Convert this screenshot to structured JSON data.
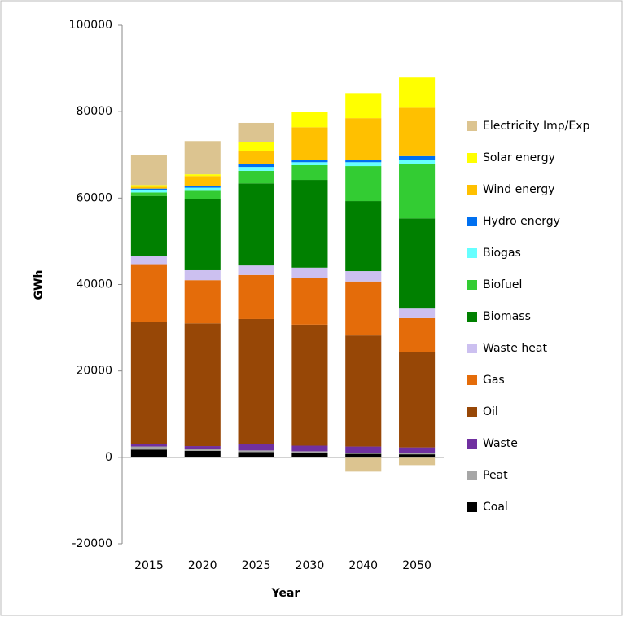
{
  "chart_data": {
    "type": "stacked-bar",
    "x_label": "Year",
    "y_label": "GWh",
    "categories": [
      "2015",
      "2020",
      "2025",
      "2030",
      "2040",
      "2050"
    ],
    "ylim": [
      -20000,
      100000
    ],
    "yticks": [
      -20000,
      0,
      20000,
      40000,
      60000,
      80000,
      100000
    ],
    "grid": false,
    "legend": "right",
    "series": [
      {
        "name": "Coal",
        "color": "#000000",
        "values": [
          1800,
          1500,
          1200,
          1000,
          800,
          700
        ]
      },
      {
        "name": "Peat",
        "color": "#a6a6a6",
        "values": [
          700,
          500,
          400,
          400,
          300,
          300
        ]
      },
      {
        "name": "Waste",
        "color": "#7030a0",
        "values": [
          500,
          600,
          1400,
          1300,
          1400,
          1300
        ]
      },
      {
        "name": "Oil",
        "color": "#974706",
        "values": [
          28400,
          28400,
          29000,
          28000,
          25700,
          22000
        ]
      },
      {
        "name": "Gas",
        "color": "#e46c0a",
        "values": [
          13300,
          10000,
          10200,
          10900,
          12500,
          7900
        ]
      },
      {
        "name": "Waste heat",
        "color": "#ccc0f0",
        "values": [
          1900,
          2300,
          2200,
          2300,
          2400,
          2400
        ]
      },
      {
        "name": "Biomass",
        "color": "#008000",
        "values": [
          13900,
          16400,
          19000,
          20300,
          16200,
          20700
        ]
      },
      {
        "name": "Biofuel",
        "color": "#33cc33",
        "values": [
          800,
          2000,
          2900,
          3400,
          8100,
          12600
        ]
      },
      {
        "name": "Biogas",
        "color": "#66ffff",
        "values": [
          600,
          700,
          900,
          700,
          900,
          1000
        ]
      },
      {
        "name": "Hydro energy",
        "color": "#0070f0",
        "values": [
          300,
          400,
          600,
          600,
          600,
          800
        ]
      },
      {
        "name": "Wind energy",
        "color": "#ffc000",
        "values": [
          400,
          2300,
          3000,
          7500,
          9600,
          11200
        ]
      },
      {
        "name": "Solar energy",
        "color": "#ffff00",
        "values": [
          400,
          400,
          2200,
          3600,
          5800,
          7000
        ]
      },
      {
        "name": "Electricity Imp/Exp",
        "color": "#dcc490",
        "values": [
          6900,
          7700,
          4400,
          0,
          -3300,
          -1800
        ]
      }
    ]
  }
}
